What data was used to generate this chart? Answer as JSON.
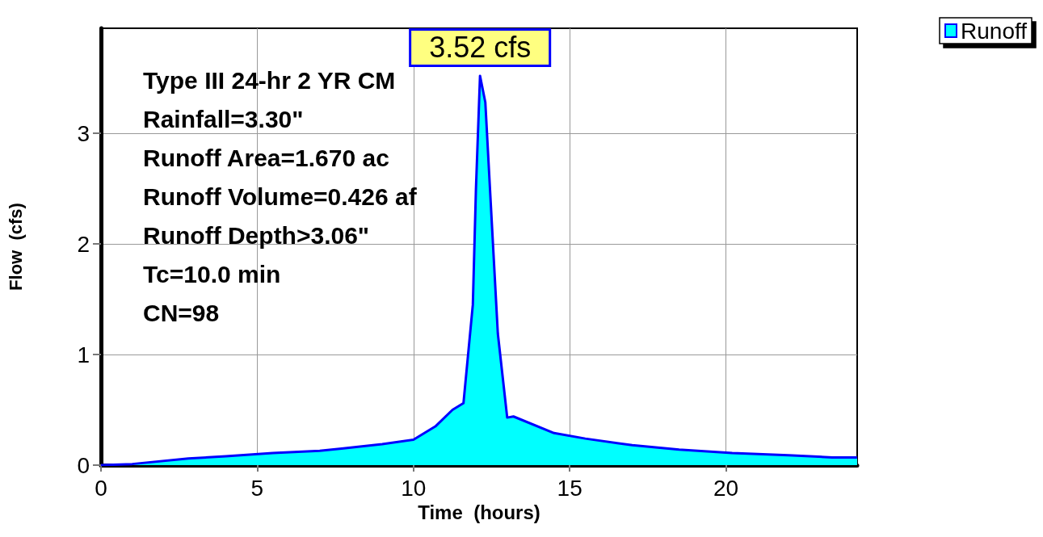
{
  "chart_data": {
    "type": "area",
    "xlabel": "Time  (hours)",
    "ylabel": "Flow  (cfs)",
    "xlim": [
      0,
      24.2
    ],
    "xticks": [
      0,
      5,
      10,
      15,
      20
    ],
    "ylim": [
      0,
      3.95
    ],
    "yticks": [
      0,
      1,
      2,
      3
    ],
    "x": [
      0,
      1,
      2.8,
      4,
      5.5,
      7,
      7.7,
      9,
      10,
      10.7,
      11.25,
      11.6,
      11.9,
      12.0,
      12.13,
      12.3,
      12.5,
      12.7,
      13.0,
      13.2,
      14.5,
      15.5,
      17,
      18.5,
      20.2,
      22,
      23.4,
      24.2
    ],
    "series": [
      {
        "name": "Runoff",
        "color": "#00ffff",
        "values": [
          0,
          0.01,
          0.06,
          0.08,
          0.11,
          0.13,
          0.15,
          0.19,
          0.23,
          0.35,
          0.5,
          0.56,
          1.45,
          2.5,
          3.52,
          3.28,
          2.23,
          1.19,
          0.43,
          0.44,
          0.29,
          0.24,
          0.18,
          0.14,
          0.11,
          0.09,
          0.07,
          0.07
        ]
      }
    ],
    "grid": true,
    "legend": "top right",
    "marker": "none",
    "line_style": "solid",
    "annotations": [
      "Type III 24-hr 2 YR CM",
      "Rainfall=3.30\"",
      "Runoff Area=1.670 ac",
      "Runoff Volume=0.426 af",
      "Runoff Depth>3.06\"",
      "Tc=10.0 min",
      "CN=98",
      {
        "text": "3.52 cfs",
        "x": 12.13,
        "y": 3.52
      }
    ]
  }
}
